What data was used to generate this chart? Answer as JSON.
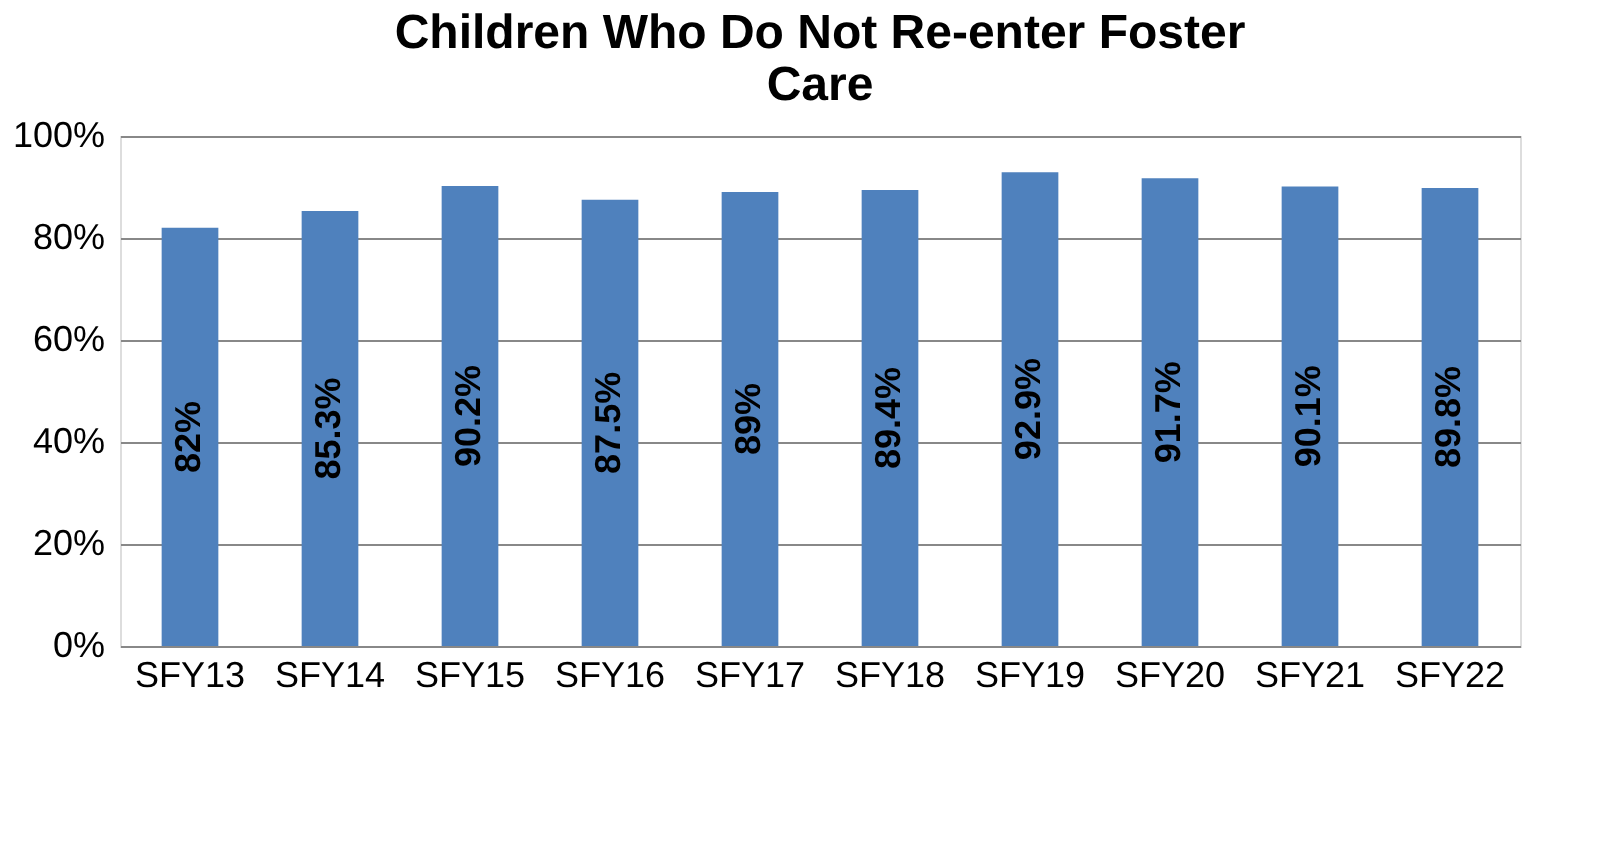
{
  "chart_data": {
    "type": "bar",
    "title": "Children Who Do Not Re-enter Foster Care",
    "categories": [
      "SFY13",
      "SFY14",
      "SFY15",
      "SFY16",
      "SFY17",
      "SFY18",
      "SFY19",
      "SFY20",
      "SFY21",
      "SFY22"
    ],
    "values": [
      82,
      85.3,
      90.2,
      87.5,
      89,
      89.4,
      92.9,
      91.7,
      90.1,
      89.8
    ],
    "value_labels": [
      "82%",
      "85.3%",
      "90.2%",
      "87.5%",
      "89%",
      "89.4%",
      "92.9%",
      "91.7%",
      "90.1%",
      "89.8%"
    ],
    "color": "#4f81bd",
    "ylim": [
      0,
      100
    ],
    "yticks": [
      {
        "value": 0,
        "label": "0%"
      },
      {
        "value": 20,
        "label": "20%"
      },
      {
        "value": 40,
        "label": "40%"
      },
      {
        "value": 60,
        "label": "60%"
      },
      {
        "value": 80,
        "label": "80%"
      },
      {
        "value": 100,
        "label": "100%"
      }
    ],
    "grid": "y"
  }
}
